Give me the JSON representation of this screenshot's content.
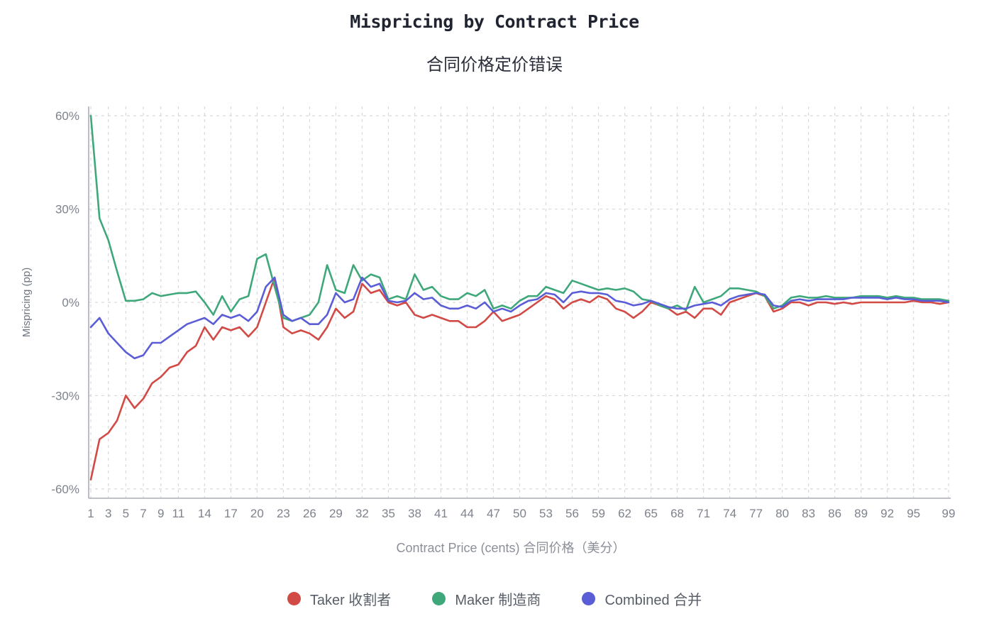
{
  "title": "Mispricing by Contract Price",
  "subtitle": "合同价格定价错误",
  "chart_data": {
    "type": "line",
    "title": "Mispricing by Contract Price",
    "subtitle": "合同价格定价错误",
    "xlabel": "Contract Price (cents) 合同价格（美分）",
    "ylabel": "Mispricing (pp)",
    "x": {
      "from": 1,
      "to": 99,
      "step": 1
    },
    "xlim": [
      1,
      99
    ],
    "ylim": [
      -63,
      63
    ],
    "grid": true,
    "legend_position": "bottom",
    "x_ticks": [
      1,
      3,
      5,
      7,
      9,
      11,
      14,
      17,
      20,
      23,
      26,
      29,
      32,
      35,
      38,
      41,
      44,
      47,
      50,
      53,
      56,
      59,
      62,
      65,
      68,
      71,
      74,
      77,
      80,
      83,
      86,
      89,
      92,
      95,
      99
    ],
    "y_ticks": [
      -60,
      -30,
      0,
      30,
      60
    ],
    "y_tick_labels": [
      "-60%",
      "-30%",
      "0%",
      "30%",
      "60%"
    ],
    "series": [
      {
        "name": "Taker",
        "label": "Taker  收割者",
        "color": "#d24a45",
        "values": [
          -57,
          -44,
          -42,
          -38,
          -30,
          -34,
          -31,
          -26,
          -24,
          -21,
          -20,
          -16,
          -14,
          -8,
          -12,
          -8,
          -9,
          -8,
          -11,
          -8,
          0,
          8,
          -8,
          -10,
          -9,
          -10,
          -12,
          -8,
          -2,
          -5,
          -3,
          6,
          3,
          4,
          0,
          -1,
          0,
          -4,
          -5,
          -4,
          -5,
          -6,
          -6,
          -8,
          -8,
          -6,
          -3,
          -6,
          -5,
          -4,
          -2,
          0,
          2,
          1,
          -2,
          0,
          1,
          0,
          2,
          1,
          -2,
          -3,
          -5,
          -3,
          0,
          -1,
          -2,
          -4,
          -3,
          -5,
          -2,
          -2,
          -4,
          0,
          1,
          2,
          3,
          2,
          -3,
          -2,
          0,
          0,
          -1,
          0,
          0,
          -0.5,
          0,
          -0.5,
          0,
          0,
          0,
          0,
          0,
          0,
          0.5,
          0,
          0,
          -0.5,
          0
        ]
      },
      {
        "name": "Maker",
        "label": "Maker  制造商",
        "color": "#3fa87b",
        "values": [
          60,
          27,
          20,
          10,
          0.5,
          0.5,
          1,
          3,
          2,
          2.5,
          3,
          3,
          3.5,
          0,
          -4,
          2,
          -3,
          1,
          2,
          14,
          15.5,
          5,
          -5,
          -6,
          -5,
          -4,
          0,
          12,
          4,
          3,
          12,
          7,
          9,
          8,
          1,
          2,
          1,
          9,
          4,
          5,
          2,
          1,
          1,
          3,
          2,
          4,
          -2,
          -1,
          -2,
          0.5,
          2,
          2,
          5,
          4,
          3,
          7,
          6,
          5,
          4,
          4.5,
          4,
          4.5,
          3.5,
          1,
          0.5,
          -1,
          -2,
          -1,
          -2.5,
          5,
          0,
          1,
          2,
          4.5,
          4.5,
          4,
          3.5,
          2,
          -2,
          -1,
          1.5,
          2,
          1.5,
          1.5,
          2,
          1.5,
          1.5,
          1.5,
          2,
          2,
          2,
          1.5,
          2,
          1.5,
          1.5,
          1,
          1,
          1,
          0.5
        ]
      },
      {
        "name": "Combined",
        "label": "Combined  合并",
        "color": "#5a5dd6",
        "values": [
          -8,
          -5,
          -10,
          -13,
          -16,
          -18,
          -17,
          -13,
          -13,
          -11,
          -9,
          -7,
          -6,
          -5,
          -7,
          -4,
          -5,
          -4,
          -6,
          -3,
          5,
          8,
          -4,
          -6,
          -5,
          -7,
          -7,
          -4,
          3,
          0,
          1,
          8,
          5,
          6,
          0.5,
          0,
          0.5,
          3,
          1,
          1.5,
          -1,
          -2,
          -2,
          -1,
          -2,
          0,
          -3,
          -2,
          -3,
          -1,
          0.5,
          1,
          3,
          2.5,
          0,
          3,
          3.5,
          3,
          3,
          2.5,
          0.5,
          0,
          -1,
          -0.5,
          0.5,
          -0.5,
          -1.5,
          -2,
          -2,
          -1,
          -0.5,
          0,
          -1,
          1,
          2,
          2.5,
          3,
          2.5,
          -1,
          -1.5,
          0.5,
          1,
          0.5,
          1,
          1,
          1,
          1,
          1.5,
          1.5,
          1.5,
          1.5,
          1,
          1.5,
          1,
          1,
          0.5,
          0.5,
          0.5,
          0
        ]
      }
    ]
  }
}
